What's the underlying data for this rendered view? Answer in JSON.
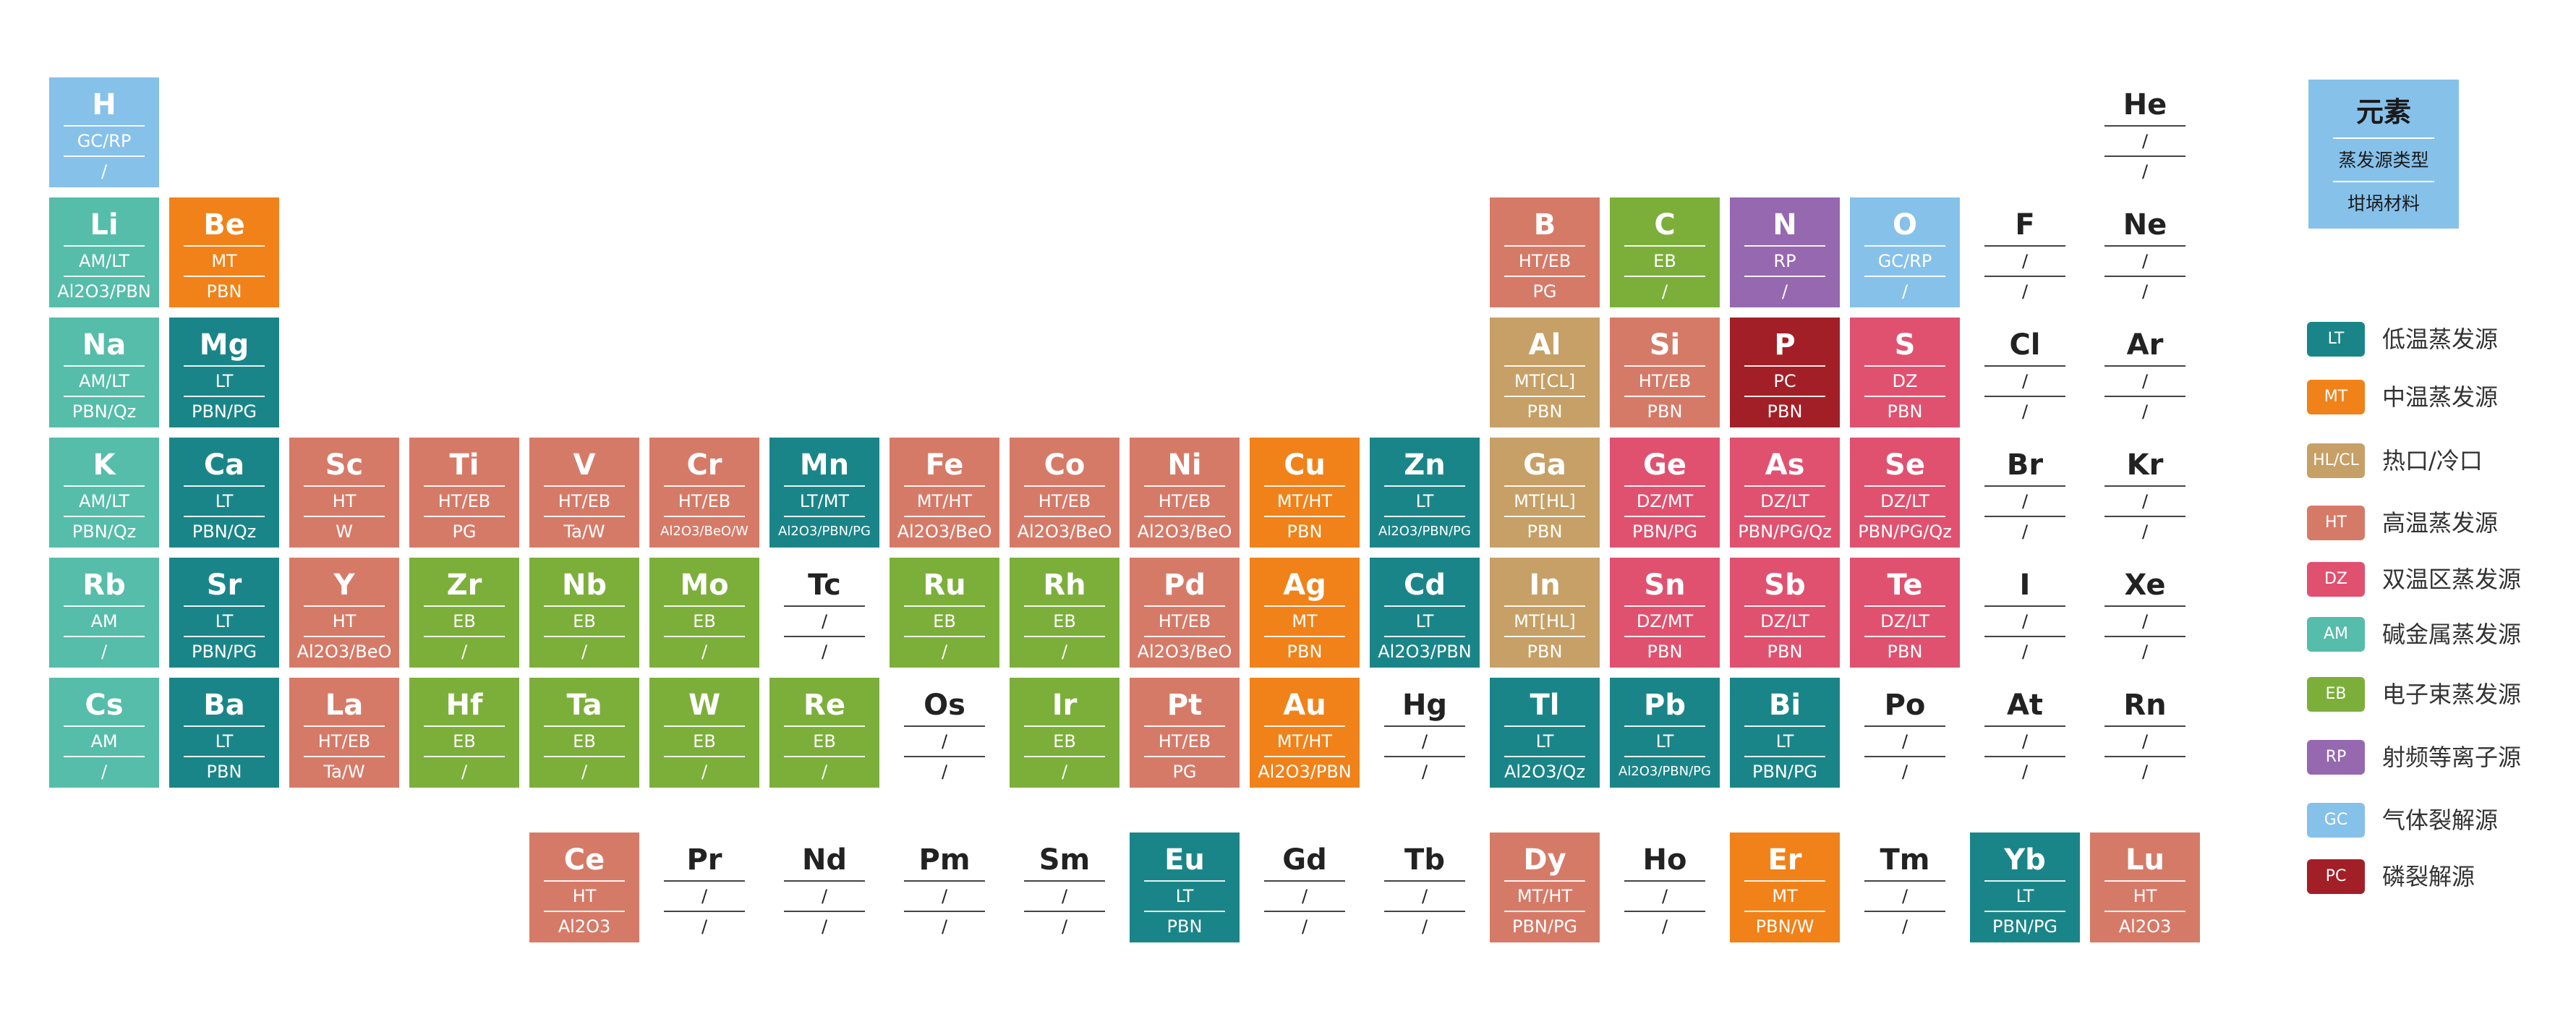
{
  "colors": {
    "LT": "#1a8588",
    "MT": "#f08219",
    "HLCL": "#c6a066",
    "HT": "#d67a68",
    "DZ": "#e05170",
    "AM": "#55bda9",
    "EB": "#7caf3a",
    "RP": "#9568b0",
    "GC": "#86c1ea",
    "PC": "#a31f27",
    "empty": "#ffffff"
  },
  "legend_header": {
    "title": "元素",
    "sub1": "蒸发源类型",
    "sub2": "坩埚材料"
  },
  "legend": [
    {
      "code": "LT",
      "color_key": "LT",
      "label": "低温蒸发源"
    },
    {
      "code": "MT",
      "color_key": "MT",
      "label": "中温蒸发源"
    },
    {
      "code": "HL/CL",
      "color_key": "HLCL",
      "label": "热口/冷口"
    },
    {
      "code": "HT",
      "color_key": "HT",
      "label": "高温蒸发源"
    },
    {
      "code": "DZ",
      "color_key": "DZ",
      "label": "双温区蒸发源"
    },
    {
      "code": "AM",
      "color_key": "AM",
      "label": "碱金属蒸发源"
    },
    {
      "code": "EB",
      "color_key": "EB",
      "label": "电子束蒸发源"
    },
    {
      "code": "RP",
      "color_key": "RP",
      "label": "射频等离子源"
    },
    {
      "code": "GC",
      "color_key": "GC",
      "label": "气体裂解源"
    },
    {
      "code": "PC",
      "color_key": "PC",
      "label": "磷裂解源"
    }
  ],
  "elements": [
    {
      "s": "H",
      "r": 1,
      "c": 1,
      "src": "GC/RP",
      "cru": "/",
      "k": "GC"
    },
    {
      "s": "He",
      "r": 1,
      "c": 18,
      "src": "/",
      "cru": "/",
      "k": "empty"
    },
    {
      "s": "Li",
      "r": 2,
      "c": 1,
      "src": "AM/LT",
      "cru": "Al2O3/PBN",
      "k": "AM"
    },
    {
      "s": "Be",
      "r": 2,
      "c": 2,
      "src": "MT",
      "cru": "PBN",
      "k": "MT"
    },
    {
      "s": "B",
      "r": 2,
      "c": 13,
      "src": "HT/EB",
      "cru": "PG",
      "k": "HT"
    },
    {
      "s": "C",
      "r": 2,
      "c": 14,
      "src": "EB",
      "cru": "/",
      "k": "EB"
    },
    {
      "s": "N",
      "r": 2,
      "c": 15,
      "src": "RP",
      "cru": "/",
      "k": "RP"
    },
    {
      "s": "O",
      "r": 2,
      "c": 16,
      "src": "GC/RP",
      "cru": "/",
      "k": "GC"
    },
    {
      "s": "F",
      "r": 2,
      "c": 17,
      "src": "/",
      "cru": "/",
      "k": "empty"
    },
    {
      "s": "Ne",
      "r": 2,
      "c": 18,
      "src": "/",
      "cru": "/",
      "k": "empty"
    },
    {
      "s": "Na",
      "r": 3,
      "c": 1,
      "src": "AM/LT",
      "cru": "PBN/Qz",
      "k": "AM"
    },
    {
      "s": "Mg",
      "r": 3,
      "c": 2,
      "src": "LT",
      "cru": "PBN/PG",
      "k": "LT"
    },
    {
      "s": "Al",
      "r": 3,
      "c": 13,
      "src": "MT[CL]",
      "cru": "PBN",
      "k": "HLCL"
    },
    {
      "s": "Si",
      "r": 3,
      "c": 14,
      "src": "HT/EB",
      "cru": "PBN",
      "k": "HT"
    },
    {
      "s": "P",
      "r": 3,
      "c": 15,
      "src": "PC",
      "cru": "PBN",
      "k": "PC"
    },
    {
      "s": "S",
      "r": 3,
      "c": 16,
      "src": "DZ",
      "cru": "PBN",
      "k": "DZ"
    },
    {
      "s": "Cl",
      "r": 3,
      "c": 17,
      "src": "/",
      "cru": "/",
      "k": "empty"
    },
    {
      "s": "Ar",
      "r": 3,
      "c": 18,
      "src": "/",
      "cru": "/",
      "k": "empty"
    },
    {
      "s": "K",
      "r": 4,
      "c": 1,
      "src": "AM/LT",
      "cru": "PBN/Qz",
      "k": "AM"
    },
    {
      "s": "Ca",
      "r": 4,
      "c": 2,
      "src": "LT",
      "cru": "PBN/Qz",
      "k": "LT"
    },
    {
      "s": "Sc",
      "r": 4,
      "c": 3,
      "src": "HT",
      "cru": "W",
      "k": "HT"
    },
    {
      "s": "Ti",
      "r": 4,
      "c": 4,
      "src": "HT/EB",
      "cru": "PG",
      "k": "HT"
    },
    {
      "s": "V",
      "r": 4,
      "c": 5,
      "src": "HT/EB",
      "cru": "Ta/W",
      "k": "HT"
    },
    {
      "s": "Cr",
      "r": 4,
      "c": 6,
      "src": "HT/EB",
      "cru": "Al2O3/BeO/W",
      "k": "HT",
      "small": true
    },
    {
      "s": "Mn",
      "r": 4,
      "c": 7,
      "src": "LT/MT",
      "cru": "Al2O3/PBN/PG",
      "k": "LT",
      "small": true
    },
    {
      "s": "Fe",
      "r": 4,
      "c": 8,
      "src": "MT/HT",
      "cru": "Al2O3/BeO",
      "k": "HT"
    },
    {
      "s": "Co",
      "r": 4,
      "c": 9,
      "src": "HT/EB",
      "cru": "Al2O3/BeO",
      "k": "HT"
    },
    {
      "s": "Ni",
      "r": 4,
      "c": 10,
      "src": "HT/EB",
      "cru": "Al2O3/BeO",
      "k": "HT"
    },
    {
      "s": "Cu",
      "r": 4,
      "c": 11,
      "src": "MT/HT",
      "cru": "PBN",
      "k": "MT"
    },
    {
      "s": "Zn",
      "r": 4,
      "c": 12,
      "src": "LT",
      "cru": "Al2O3/PBN/PG",
      "k": "LT",
      "small": true
    },
    {
      "s": "Ga",
      "r": 4,
      "c": 13,
      "src": "MT[HL]",
      "cru": "PBN",
      "k": "HLCL"
    },
    {
      "s": "Ge",
      "r": 4,
      "c": 14,
      "src": "DZ/MT",
      "cru": "PBN/PG",
      "k": "DZ"
    },
    {
      "s": "As",
      "r": 4,
      "c": 15,
      "src": "DZ/LT",
      "cru": "PBN/PG/Qz",
      "k": "DZ"
    },
    {
      "s": "Se",
      "r": 4,
      "c": 16,
      "src": "DZ/LT",
      "cru": "PBN/PG/Qz",
      "k": "DZ"
    },
    {
      "s": "Br",
      "r": 4,
      "c": 17,
      "src": "/",
      "cru": "/",
      "k": "empty"
    },
    {
      "s": "Kr",
      "r": 4,
      "c": 18,
      "src": "/",
      "cru": "/",
      "k": "empty"
    },
    {
      "s": "Rb",
      "r": 5,
      "c": 1,
      "src": "AM",
      "cru": "/",
      "k": "AM"
    },
    {
      "s": "Sr",
      "r": 5,
      "c": 2,
      "src": "LT",
      "cru": "PBN/PG",
      "k": "LT"
    },
    {
      "s": "Y",
      "r": 5,
      "c": 3,
      "src": "HT",
      "cru": "Al2O3/BeO",
      "k": "HT"
    },
    {
      "s": "Zr",
      "r": 5,
      "c": 4,
      "src": "EB",
      "cru": "/",
      "k": "EB"
    },
    {
      "s": "Nb",
      "r": 5,
      "c": 5,
      "src": "EB",
      "cru": "/",
      "k": "EB"
    },
    {
      "s": "Mo",
      "r": 5,
      "c": 6,
      "src": "EB",
      "cru": "/",
      "k": "EB"
    },
    {
      "s": "Tc",
      "r": 5,
      "c": 7,
      "src": "/",
      "cru": "/",
      "k": "empty"
    },
    {
      "s": "Ru",
      "r": 5,
      "c": 8,
      "src": "EB",
      "cru": "/",
      "k": "EB"
    },
    {
      "s": "Rh",
      "r": 5,
      "c": 9,
      "src": "EB",
      "cru": "/",
      "k": "EB"
    },
    {
      "s": "Pd",
      "r": 5,
      "c": 10,
      "src": "HT/EB",
      "cru": "Al2O3/BeO",
      "k": "HT"
    },
    {
      "s": "Ag",
      "r": 5,
      "c": 11,
      "src": "MT",
      "cru": "PBN",
      "k": "MT"
    },
    {
      "s": "Cd",
      "r": 5,
      "c": 12,
      "src": "LT",
      "cru": "Al2O3/PBN",
      "k": "LT"
    },
    {
      "s": "In",
      "r": 5,
      "c": 13,
      "src": "MT[HL]",
      "cru": "PBN",
      "k": "HLCL"
    },
    {
      "s": "Sn",
      "r": 5,
      "c": 14,
      "src": "DZ/MT",
      "cru": "PBN",
      "k": "DZ"
    },
    {
      "s": "Sb",
      "r": 5,
      "c": 15,
      "src": "DZ/LT",
      "cru": "PBN",
      "k": "DZ"
    },
    {
      "s": "Te",
      "r": 5,
      "c": 16,
      "src": "DZ/LT",
      "cru": "PBN",
      "k": "DZ"
    },
    {
      "s": "I",
      "r": 5,
      "c": 17,
      "src": "/",
      "cru": "/",
      "k": "empty"
    },
    {
      "s": "Xe",
      "r": 5,
      "c": 18,
      "src": "/",
      "cru": "/",
      "k": "empty"
    },
    {
      "s": "Cs",
      "r": 6,
      "c": 1,
      "src": "AM",
      "cru": "/",
      "k": "AM"
    },
    {
      "s": "Ba",
      "r": 6,
      "c": 2,
      "src": "LT",
      "cru": "PBN",
      "k": "LT"
    },
    {
      "s": "La",
      "r": 6,
      "c": 3,
      "src": "HT/EB",
      "cru": "Ta/W",
      "k": "HT"
    },
    {
      "s": "Hf",
      "r": 6,
      "c": 4,
      "src": "EB",
      "cru": "/",
      "k": "EB"
    },
    {
      "s": "Ta",
      "r": 6,
      "c": 5,
      "src": "EB",
      "cru": "/",
      "k": "EB"
    },
    {
      "s": "W",
      "r": 6,
      "c": 6,
      "src": "EB",
      "cru": "/",
      "k": "EB"
    },
    {
      "s": "Re",
      "r": 6,
      "c": 7,
      "src": "EB",
      "cru": "/",
      "k": "EB"
    },
    {
      "s": "Os",
      "r": 6,
      "c": 8,
      "src": "/",
      "cru": "/",
      "k": "empty"
    },
    {
      "s": "Ir",
      "r": 6,
      "c": 9,
      "src": "EB",
      "cru": "/",
      "k": "EB"
    },
    {
      "s": "Pt",
      "r": 6,
      "c": 10,
      "src": "HT/EB",
      "cru": "PG",
      "k": "HT"
    },
    {
      "s": "Au",
      "r": 6,
      "c": 11,
      "src": "MT/HT",
      "cru": "Al2O3/PBN",
      "k": "MT"
    },
    {
      "s": "Hg",
      "r": 6,
      "c": 12,
      "src": "/",
      "cru": "/",
      "k": "empty"
    },
    {
      "s": "Tl",
      "r": 6,
      "c": 13,
      "src": "LT",
      "cru": "Al2O3/Qz",
      "k": "LT"
    },
    {
      "s": "Pb",
      "r": 6,
      "c": 14,
      "src": "LT",
      "cru": "Al2O3/PBN/PG",
      "k": "LT",
      "small": true
    },
    {
      "s": "Bi",
      "r": 6,
      "c": 15,
      "src": "LT",
      "cru": "PBN/PG",
      "k": "LT"
    },
    {
      "s": "Po",
      "r": 6,
      "c": 16,
      "src": "/",
      "cru": "/",
      "k": "empty"
    },
    {
      "s": "At",
      "r": 6,
      "c": 17,
      "src": "/",
      "cru": "/",
      "k": "empty"
    },
    {
      "s": "Rn",
      "r": 6,
      "c": 18,
      "src": "/",
      "cru": "/",
      "k": "empty"
    },
    {
      "s": "Ce",
      "r": 8,
      "c": 5,
      "src": "HT",
      "cru": "Al2O3",
      "k": "HT"
    },
    {
      "s": "Pr",
      "r": 8,
      "c": 6,
      "src": "/",
      "cru": "/",
      "k": "empty"
    },
    {
      "s": "Nd",
      "r": 8,
      "c": 7,
      "src": "/",
      "cru": "/",
      "k": "empty"
    },
    {
      "s": "Pm",
      "r": 8,
      "c": 8,
      "src": "/",
      "cru": "/",
      "k": "empty"
    },
    {
      "s": "Sm",
      "r": 8,
      "c": 9,
      "src": "/",
      "cru": "/",
      "k": "empty"
    },
    {
      "s": "Eu",
      "r": 8,
      "c": 10,
      "src": "LT",
      "cru": "PBN",
      "k": "LT"
    },
    {
      "s": "Gd",
      "r": 8,
      "c": 11,
      "src": "/",
      "cru": "/",
      "k": "empty"
    },
    {
      "s": "Tb",
      "r": 8,
      "c": 12,
      "src": "/",
      "cru": "/",
      "k": "empty"
    },
    {
      "s": "Dy",
      "r": 8,
      "c": 13,
      "src": "MT/HT",
      "cru": "PBN/PG",
      "k": "HT"
    },
    {
      "s": "Ho",
      "r": 8,
      "c": 14,
      "src": "/",
      "cru": "/",
      "k": "empty"
    },
    {
      "s": "Er",
      "r": 8,
      "c": 15,
      "src": "MT",
      "cru": "PBN/W",
      "k": "MT"
    },
    {
      "s": "Tm",
      "r": 8,
      "c": 16,
      "src": "/",
      "cru": "/",
      "k": "empty"
    },
    {
      "s": "Yb",
      "r": 8,
      "c": 17,
      "src": "LT",
      "cru": "PBN/PG",
      "k": "LT"
    },
    {
      "s": "Lu",
      "r": 8,
      "c": 18,
      "src": "HT",
      "cru": "Al2O3",
      "k": "HT"
    }
  ]
}
